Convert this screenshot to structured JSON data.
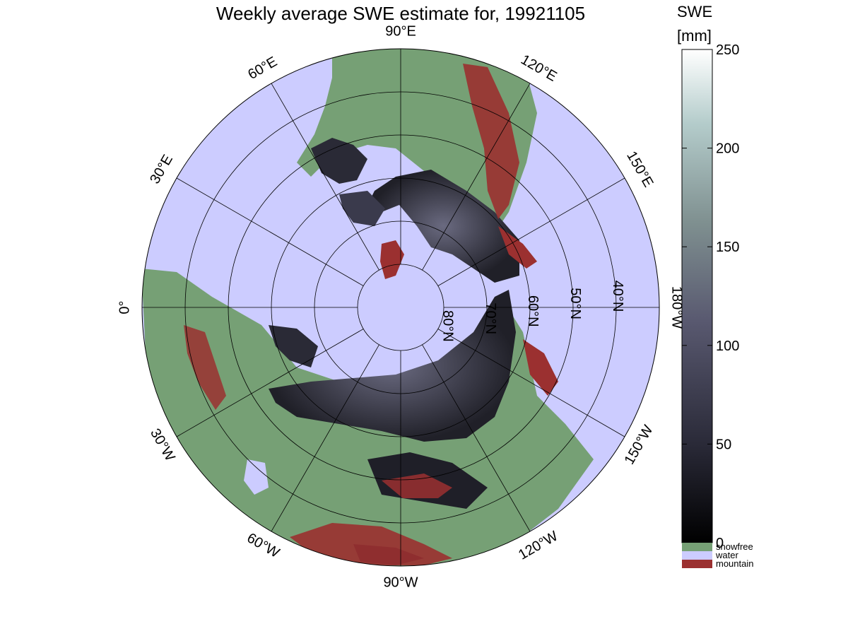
{
  "title": "Weekly average SWE estimate for, 19921105",
  "colorbar": {
    "label": "SWE",
    "unit": "[mm]",
    "ticks": [
      "0",
      "50",
      "100",
      "150",
      "200",
      "250"
    ],
    "tick_values": [
      0,
      50,
      100,
      150,
      200,
      250
    ],
    "range": [
      0,
      250
    ],
    "colormap": "bone"
  },
  "legend": [
    {
      "label": "snowfree",
      "color": "#76a075"
    },
    {
      "label": "water",
      "color": "#ccccff"
    },
    {
      "label": "mountain",
      "color": "#9b3030"
    }
  ],
  "meridian_labels": [
    {
      "label": "90°W",
      "lon": -90
    },
    {
      "label": "60°W",
      "lon": -60
    },
    {
      "label": "120°W",
      "lon": -120
    },
    {
      "label": "30°W",
      "lon": -30
    },
    {
      "label": "150°W",
      "lon": -150
    },
    {
      "label": "0°",
      "lon": 0
    },
    {
      "label": "180°W",
      "lon": 180
    },
    {
      "label": "30°E",
      "lon": 30
    },
    {
      "label": "150°E",
      "lon": 150
    },
    {
      "label": "60°E",
      "lon": 60
    },
    {
      "label": "120°E",
      "lon": 120
    },
    {
      "label": "90°E",
      "lon": 90
    }
  ],
  "parallel_labels": [
    {
      "label": "80°N",
      "lat": 80
    },
    {
      "label": "70°N",
      "lat": 70
    },
    {
      "label": "60°N",
      "lat": 60
    },
    {
      "label": "50°N",
      "lat": 50
    },
    {
      "label": "40°N",
      "lat": 40
    }
  ],
  "colors": {
    "water": "#ccccff",
    "snowfree": "#76a075",
    "mountain": "#9b3030",
    "snow_low": "#1a1a22",
    "snow_mid": "#4a4a5e"
  }
}
